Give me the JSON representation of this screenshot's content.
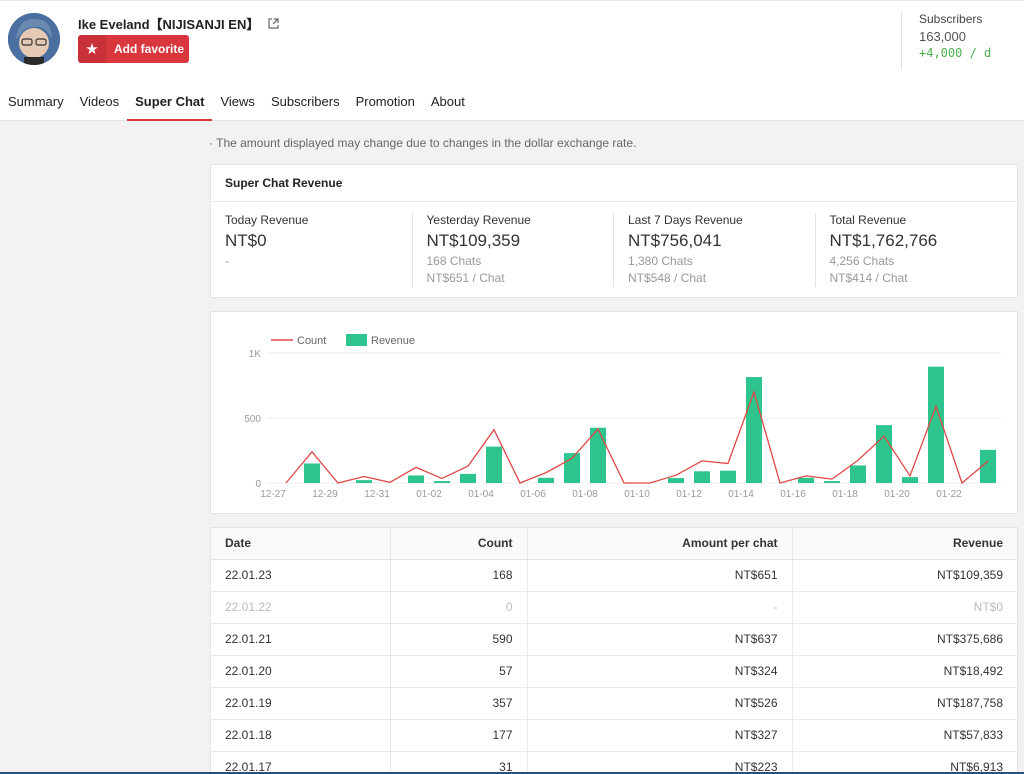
{
  "channel": {
    "name": "Ike Eveland【NIJISANJI EN】",
    "favorite_label": "Add favorite"
  },
  "subscribers": {
    "label": "Subscribers",
    "value": "163,000",
    "delta": "+4,000 / d"
  },
  "tabs": [
    {
      "label": "Summary"
    },
    {
      "label": "Videos"
    },
    {
      "label": "Super Chat",
      "active": true
    },
    {
      "label": "Views"
    },
    {
      "label": "Subscribers"
    },
    {
      "label": "Promotion"
    },
    {
      "label": "About"
    }
  ],
  "notice": "The amount displayed may change due to changes in the dollar exchange rate.",
  "revenue": {
    "title": "Super Chat Revenue",
    "cols": [
      {
        "label": "Today Revenue",
        "amount": "NT$0",
        "line1": "-",
        "line2": ""
      },
      {
        "label": "Yesterday Revenue",
        "amount": "NT$109,359",
        "line1": "168 Chats",
        "line2": "NT$651 / Chat"
      },
      {
        "label": "Last 7 Days Revenue",
        "amount": "NT$756,041",
        "line1": "1,380 Chats",
        "line2": "NT$548 / Chat"
      },
      {
        "label": "Total Revenue",
        "amount": "NT$1,762,766",
        "line1": "4,256 Chats",
        "line2": "NT$414 / Chat"
      }
    ]
  },
  "chart_data": {
    "type": "bar",
    "legend": [
      "Count",
      "Revenue"
    ],
    "colors": {
      "count": "#e04848",
      "revenue": "#2ec48d"
    },
    "y_ticks": [
      "1K",
      "500",
      "0"
    ],
    "ylim": [
      0,
      1000
    ],
    "categories": [
      "12-27",
      "12-28",
      "12-29",
      "12-30",
      "12-31",
      "01-01",
      "01-02",
      "01-03",
      "01-04",
      "01-05",
      "01-06",
      "01-07",
      "01-08",
      "01-09",
      "01-10",
      "01-11",
      "01-12",
      "01-13",
      "01-14",
      "01-15",
      "01-16",
      "01-17",
      "01-18",
      "01-19",
      "01-20",
      "01-21",
      "01-22",
      "01-23"
    ],
    "x_tick_labels": [
      "12-27",
      "12-29",
      "12-31",
      "01-02",
      "01-04",
      "01-06",
      "01-08",
      "01-10",
      "01-12",
      "01-14",
      "01-16",
      "01-18",
      "01-20",
      "01-22"
    ],
    "series": [
      {
        "name": "Revenue",
        "values": [
          0,
          150,
          0,
          22,
          0,
          58,
          15,
          70,
          280,
          0,
          40,
          230,
          425,
          0,
          0,
          38,
          90,
          95,
          815,
          0,
          40,
          15,
          135,
          445,
          45,
          895,
          0,
          255
        ]
      },
      {
        "name": "Count",
        "values": [
          0,
          240,
          0,
          50,
          5,
          120,
          35,
          130,
          410,
          0,
          80,
          190,
          415,
          0,
          0,
          60,
          170,
          150,
          700,
          0,
          55,
          30,
          175,
          360,
          55,
          590,
          0,
          168
        ]
      }
    ]
  },
  "table": {
    "headers": [
      "Date",
      "Count",
      "Amount per chat",
      "Revenue"
    ],
    "rows": [
      [
        "22.01.23",
        "168",
        "NT$651",
        "NT$109,359"
      ],
      [
        "22.01.22",
        "0",
        "-",
        "NT$0"
      ],
      [
        "22.01.21",
        "590",
        "NT$637",
        "NT$375,686"
      ],
      [
        "22.01.20",
        "57",
        "NT$324",
        "NT$18,492"
      ],
      [
        "22.01.19",
        "357",
        "NT$526",
        "NT$187,758"
      ],
      [
        "22.01.18",
        "177",
        "NT$327",
        "NT$57,833"
      ],
      [
        "22.01.17",
        "31",
        "NT$223",
        "NT$6,913"
      ]
    ]
  }
}
